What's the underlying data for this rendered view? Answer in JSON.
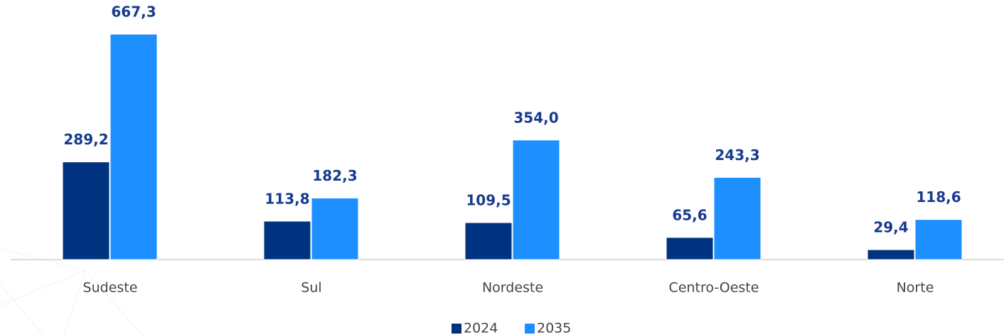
{
  "chart_data": {
    "type": "bar",
    "categories": [
      "Sudeste",
      "Sul",
      "Nordeste",
      "Centro-Oeste",
      "Norte"
    ],
    "series": [
      {
        "name": "2024",
        "color": "#00337f",
        "values": [
          289.2,
          113.8,
          109.5,
          65.6,
          29.4
        ],
        "value_labels": [
          "289,2",
          "113,8",
          "109,5",
          "65,6",
          "29,4"
        ]
      },
      {
        "name": "2035",
        "color": "#1e8fff",
        "values": [
          667.3,
          182.3,
          354.0,
          243.3,
          118.6
        ],
        "value_labels": [
          "667,3",
          "182,3",
          "354,0",
          "243,3",
          "118,6"
        ]
      }
    ],
    "ylim": [
      0,
      700
    ],
    "legend": "bottom"
  }
}
